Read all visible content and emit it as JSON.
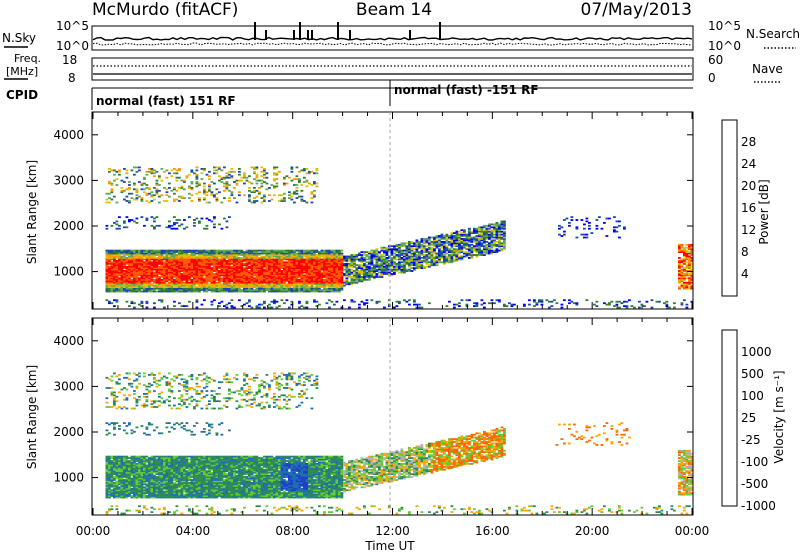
{
  "header": {
    "station": "McMurdo (fitACF)",
    "beam": "Beam 14",
    "date": "07/May/2013"
  },
  "summary_panel": {
    "left_label_top": "N.Sky",
    "left_label_bottom_1": "Freq.",
    "left_label_bottom_2": "[MHz]",
    "left_label_cpid": "CPID",
    "right_label_top": "N.Search",
    "right_label_bottom": "Nave",
    "left_ticks_top": [
      "10^5",
      "10^0"
    ],
    "right_ticks_top": [
      "10^5",
      "10^0"
    ],
    "left_ticks_freq": [
      "18",
      "8"
    ],
    "right_ticks_nave": [
      "60",
      "0"
    ],
    "cpid_segments": [
      {
        "label": "normal (fast) 151 RF",
        "start_hour": 0
      },
      {
        "label": "normal (fast) -151 RF",
        "start_hour": 12
      }
    ]
  },
  "colors": {
    "power": [
      "#0000ff",
      "#1c46b4",
      "#2e7d32",
      "#5fa85a",
      "#d8c400",
      "#ff9900",
      "#ff5a00",
      "#ff0000"
    ],
    "velocity": [
      "#ff0000",
      "#ff6600",
      "#ffa500",
      "#b3b3b3",
      "#66cc33",
      "#2e8b57",
      "#1e6fb0",
      "#1e40c8"
    ]
  },
  "chart_data": [
    {
      "type": "heatmap",
      "title": "",
      "ylabel": "Slant Range [km]",
      "xlabel": "",
      "xlim": [
        "00:00",
        "24:00"
      ],
      "ylim": [
        180,
        4500
      ],
      "yticks": [
        "1000",
        "2000",
        "3000",
        "4000"
      ],
      "xticks": [
        "00:00",
        "04:00",
        "08:00",
        "12:00",
        "16:00",
        "20:00",
        "00:00"
      ],
      "colorbar": {
        "label": "Power [dB]",
        "ticks": [
          "4",
          "8",
          "12",
          "16",
          "20",
          "24",
          "28"
        ],
        "range": [
          0,
          30
        ]
      },
      "features": [
        {
          "name": "main echo band",
          "hours": [
            0.5,
            10
          ],
          "range_km": [
            600,
            1400
          ],
          "power_db": [
            20,
            30
          ]
        },
        {
          "name": "rising echo band",
          "hours": [
            10,
            16.5
          ],
          "range_km": [
            1000,
            2000
          ],
          "power_db": [
            4,
            16
          ]
        },
        {
          "name": "upper scatter",
          "hours": [
            0.5,
            9
          ],
          "range_km": [
            2500,
            3300
          ],
          "power_db": [
            4,
            20
          ]
        },
        {
          "name": "late echo",
          "hours": [
            23.4,
            24
          ],
          "range_km": [
            600,
            1500
          ],
          "power_db": [
            12,
            30
          ]
        }
      ]
    },
    {
      "type": "heatmap",
      "title": "",
      "ylabel": "Slant Range [km]",
      "xlabel": "Time UT",
      "xlim": [
        "00:00",
        "24:00"
      ],
      "ylim": [
        180,
        4500
      ],
      "yticks": [
        "1000",
        "2000",
        "3000",
        "4000"
      ],
      "xticks": [
        "00:00",
        "04:00",
        "08:00",
        "12:00",
        "16:00",
        "20:00",
        "00:00"
      ],
      "colorbar": {
        "label": "Velocity [m s⁻¹]",
        "ticks": [
          "1000",
          "500",
          "100",
          "25",
          "-25",
          "-100",
          "-500",
          "-1000"
        ]
      },
      "features": [
        {
          "name": "main echo band",
          "hours": [
            0.5,
            10
          ],
          "range_km": [
            600,
            1400
          ],
          "velocity": "positive 100-500"
        },
        {
          "name": "rising echo band",
          "hours": [
            10,
            16.5
          ],
          "range_km": [
            1000,
            2000
          ],
          "velocity": "mixed positive/negative"
        },
        {
          "name": "orange patch",
          "hours": [
            13.5,
            16.5
          ],
          "range_km": [
            1300,
            1900
          ],
          "velocity": "-100 to -500"
        }
      ]
    }
  ]
}
